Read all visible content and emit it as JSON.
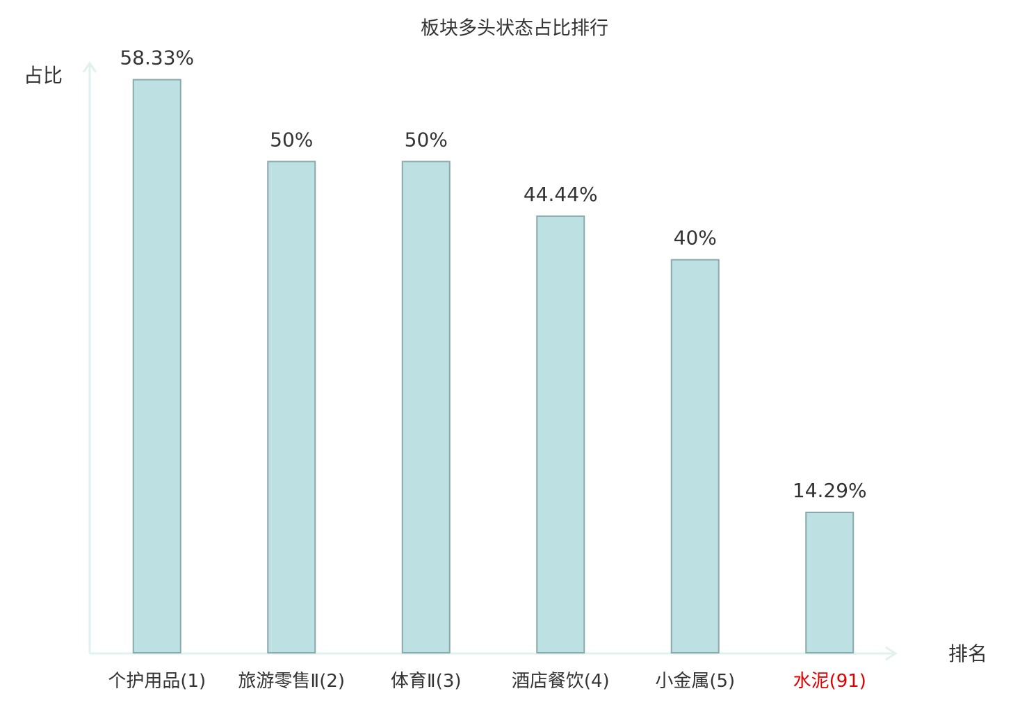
{
  "chart_data": {
    "type": "bar",
    "title": "板块多头状态占比排行",
    "y_label": "占比",
    "x_label": "排名",
    "categories": [
      "个护用品(1)",
      "旅游零售Ⅱ(2)",
      "体育Ⅱ(3)",
      "酒店餐饮(4)",
      "小金属(5)",
      "水泥(91)"
    ],
    "category_colors": [
      "#333333",
      "#333333",
      "#333333",
      "#333333",
      "#333333",
      "#e00000"
    ],
    "values": [
      58.33,
      50,
      50,
      44.44,
      40,
      14.29
    ],
    "value_labels": [
      "58.33%",
      "50%",
      "50%",
      "44.44%",
      "40%",
      "14.29%"
    ],
    "color": "#bde0e3",
    "edge_color": "#8aa9ab",
    "ylim": [
      0,
      60
    ]
  }
}
